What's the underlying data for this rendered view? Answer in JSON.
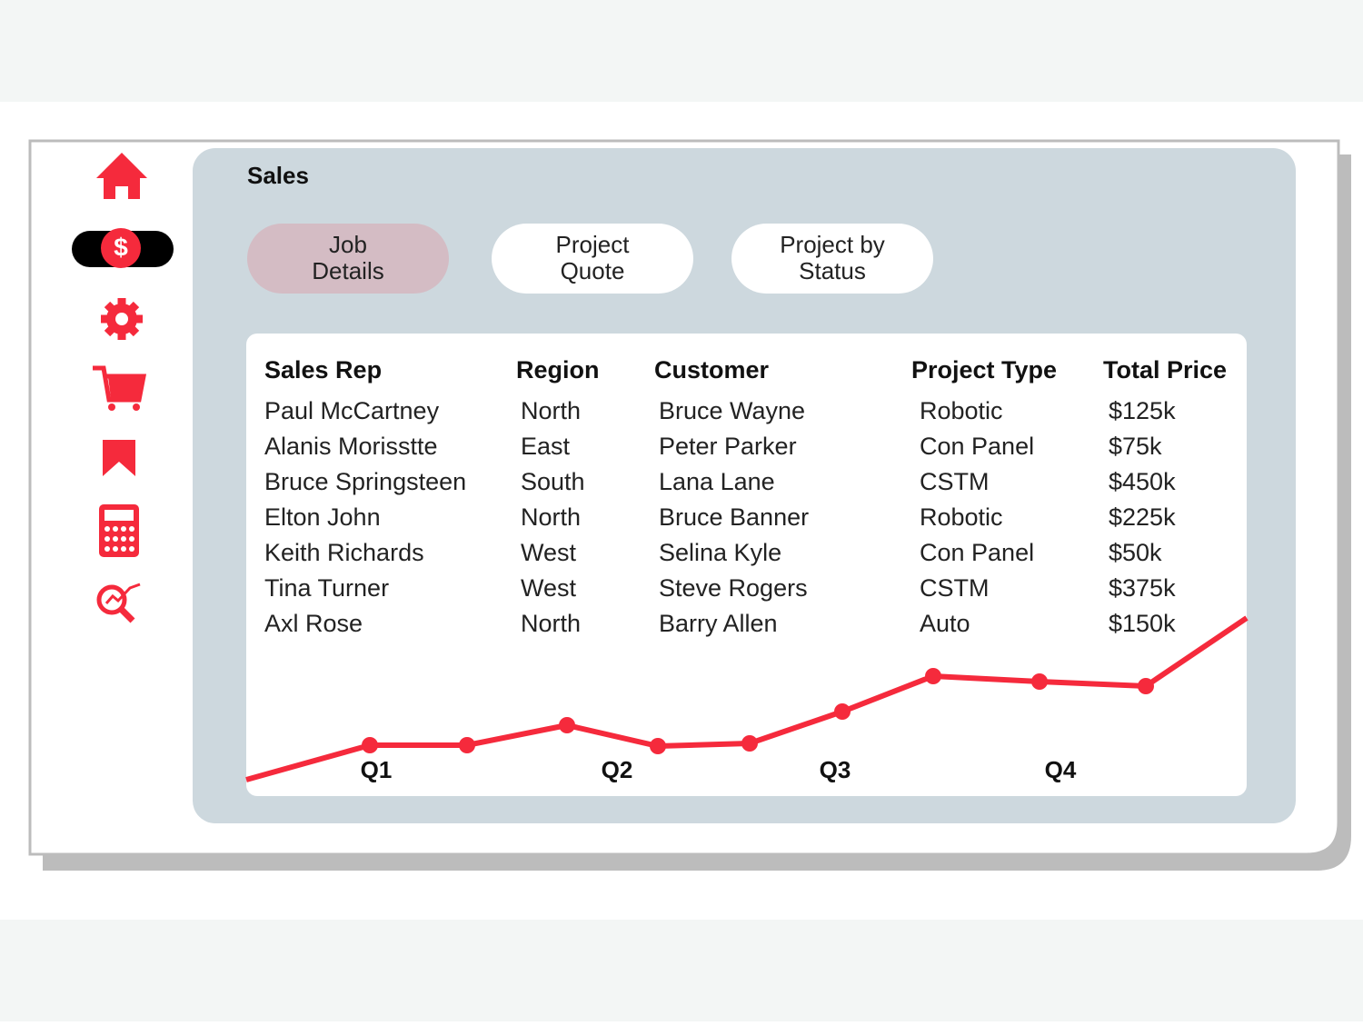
{
  "header": {
    "title": "Sales"
  },
  "nav": {
    "active_icon": "$"
  },
  "tabs": [
    [
      "Job",
      "Details"
    ],
    [
      "Project",
      "Quote"
    ],
    [
      "Project by",
      "Status"
    ]
  ],
  "table": {
    "columns": [
      "Sales Rep",
      "Region",
      "Customer",
      "Project Type",
      "Total Price"
    ],
    "rows": [
      [
        "Paul McCartney",
        "North",
        "Bruce Wayne",
        "Robotic",
        "$125k"
      ],
      [
        "Alanis Morisstte",
        "East",
        "Peter Parker",
        "Con Panel",
        "$75k"
      ],
      [
        "Bruce Springsteen",
        "South",
        "Lana Lane",
        "CSTM",
        "$450k"
      ],
      [
        "Elton John",
        "North",
        "Bruce Banner",
        "Robotic",
        "$225k"
      ],
      [
        "Keith Richards",
        "West",
        "Selina Kyle",
        "Con Panel",
        "$50k"
      ],
      [
        "Tina Turner",
        "West",
        "Steve Rogers",
        "CSTM",
        "$375k"
      ],
      [
        "Axl Rose",
        "North",
        "Barry Allen",
        "Auto",
        "$150k"
      ]
    ]
  },
  "trend": {
    "labels": [
      "Q1",
      "Q2",
      "Q3",
      "Q4"
    ]
  }
}
